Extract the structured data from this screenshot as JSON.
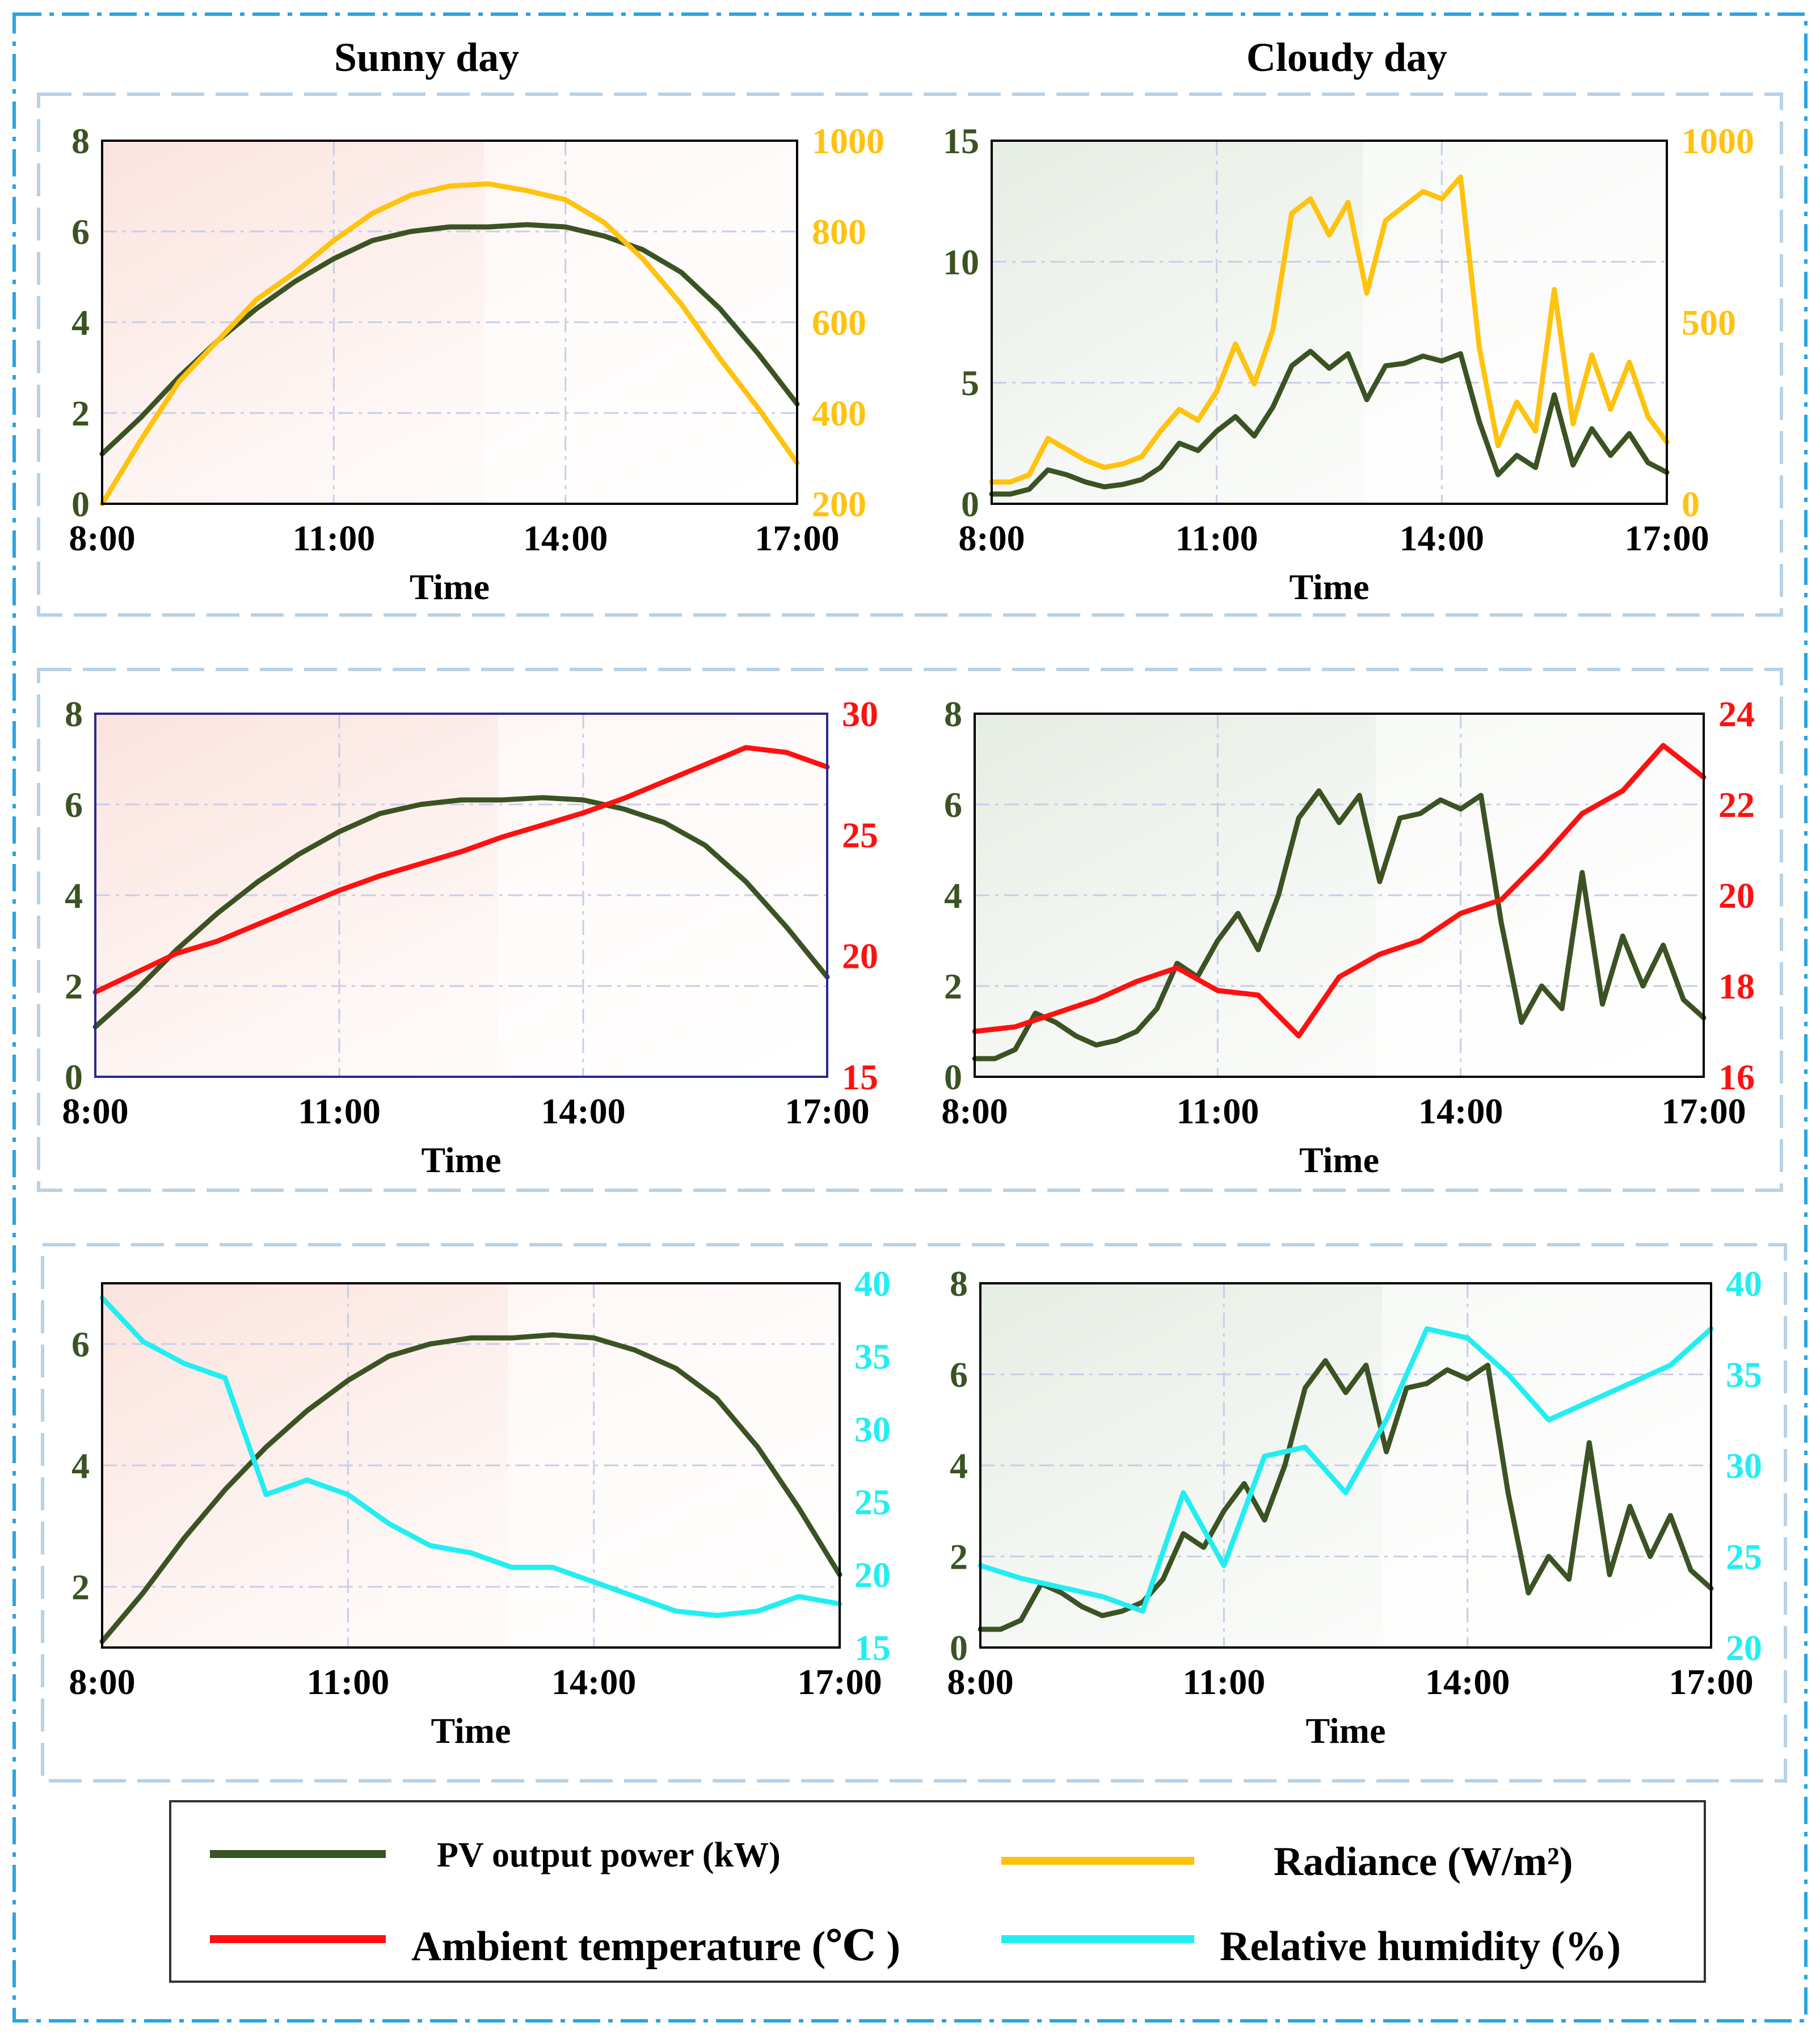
{
  "columns": {
    "left_title": "Sunny day",
    "right_title": "Cloudy day"
  },
  "colors": {
    "pv": "#3b5323",
    "radiance": "#ffc20e",
    "temperature": "#ff1010",
    "humidity": "#22eef2",
    "dark_axis_label": "#3b5323",
    "outer_border": "#29a5e0",
    "group_border": "#b8d2e6",
    "grid": "#c8cde8"
  },
  "legend": {
    "pv": "PV output power (kW)",
    "radiance": "Radiance (W/m²)",
    "temperature": "Ambient temperature (℃ )",
    "humidity": "Relative humidity (%)"
  },
  "chart_data": [
    {
      "id": "sunny-radiance",
      "type": "line",
      "title": "",
      "xlabel": "Time",
      "x_ticks": [
        "8:00",
        "11:00",
        "14:00",
        "17:00"
      ],
      "ylim_left": [
        0,
        8
      ],
      "y_ticks_left": [
        "0",
        "2",
        "4",
        "6",
        "8"
      ],
      "ylabel_left": "",
      "ylim_right": [
        200,
        1000
      ],
      "y_ticks_right": [
        "200",
        "400",
        "600",
        "800",
        "1000"
      ],
      "ylabel_right": "",
      "right_color": "#ffc20e",
      "series": [
        {
          "name": "PV output power (kW)",
          "axis": "left",
          "color": "#3b5323",
          "x": [
            0,
            0.5,
            1,
            1.5,
            2,
            2.5,
            3,
            3.5,
            4,
            4.5,
            5,
            5.5,
            6,
            6.5,
            7,
            7.5,
            8,
            8.5,
            9
          ],
          "values": [
            1.1,
            1.9,
            2.8,
            3.6,
            4.3,
            4.9,
            5.4,
            5.8,
            6.0,
            6.1,
            6.1,
            6.15,
            6.1,
            5.9,
            5.6,
            5.1,
            4.3,
            3.3,
            2.2
          ]
        },
        {
          "name": "Radiance (W/m²)",
          "axis": "right",
          "color": "#ffc20e",
          "x": [
            0,
            0.5,
            1,
            1.5,
            2,
            2.5,
            3,
            3.5,
            4,
            4.5,
            5,
            5.5,
            6,
            6.5,
            7,
            7.5,
            8,
            8.5,
            9
          ],
          "values": [
            200,
            340,
            470,
            560,
            650,
            710,
            780,
            840,
            880,
            900,
            905,
            890,
            870,
            820,
            740,
            640,
            520,
            410,
            290
          ]
        }
      ]
    },
    {
      "id": "cloudy-radiance",
      "type": "line",
      "title": "",
      "xlabel": "Time",
      "x_ticks": [
        "8:00",
        "11:00",
        "14:00",
        "17:00"
      ],
      "ylim_left": [
        0,
        15
      ],
      "y_ticks_left": [
        "0",
        "5",
        "10",
        "15"
      ],
      "ylabel_left": "",
      "ylim_right": [
        0,
        1000
      ],
      "y_ticks_right": [
        "0",
        "500",
        "1000"
      ],
      "ylabel_right": "",
      "right_color": "#ffc20e",
      "series": [
        {
          "name": "PV output power (kW)",
          "axis": "left",
          "color": "#3b5323",
          "x": [
            0,
            0.25,
            0.5,
            0.75,
            1,
            1.25,
            1.5,
            1.75,
            2,
            2.25,
            2.5,
            2.75,
            3,
            3.25,
            3.5,
            3.75,
            4,
            4.25,
            4.5,
            4.75,
            5,
            5.25,
            5.5,
            5.75,
            6,
            6.25,
            6.5,
            6.75,
            7,
            7.25,
            7.5,
            7.75,
            8,
            8.25,
            8.5,
            8.75,
            9
          ],
          "values": [
            0.4,
            0.4,
            0.6,
            1.4,
            1.2,
            0.9,
            0.7,
            0.8,
            1.0,
            1.5,
            2.5,
            2.2,
            3.0,
            3.6,
            2.8,
            4.0,
            5.7,
            6.3,
            5.6,
            6.2,
            4.3,
            5.7,
            5.8,
            6.1,
            5.9,
            6.2,
            3.4,
            1.2,
            2.0,
            1.5,
            4.5,
            1.6,
            3.1,
            2.0,
            2.9,
            1.7,
            1.3
          ]
        },
        {
          "name": "Radiance (W/m²)",
          "axis": "right",
          "color": "#ffc20e",
          "x": [
            0,
            0.25,
            0.5,
            0.75,
            1,
            1.25,
            1.5,
            1.75,
            2,
            2.25,
            2.5,
            2.75,
            3,
            3.25,
            3.5,
            3.75,
            4,
            4.25,
            4.5,
            4.75,
            5,
            5.25,
            5.5,
            5.75,
            6,
            6.25,
            6.5,
            6.75,
            7,
            7.25,
            7.5,
            7.75,
            8,
            8.25,
            8.5,
            8.75,
            9
          ],
          "values": [
            60,
            60,
            80,
            180,
            150,
            120,
            100,
            110,
            130,
            200,
            260,
            230,
            310,
            440,
            330,
            480,
            800,
            840,
            740,
            830,
            580,
            780,
            820,
            860,
            840,
            900,
            430,
            160,
            280,
            200,
            590,
            220,
            410,
            260,
            390,
            240,
            170
          ]
        }
      ]
    },
    {
      "id": "sunny-temperature",
      "type": "line",
      "title": "",
      "xlabel": "Time",
      "x_ticks": [
        "8:00",
        "11:00",
        "14:00",
        "17:00"
      ],
      "ylim_left": [
        0,
        8
      ],
      "y_ticks_left": [
        "0",
        "2",
        "4",
        "6",
        "8"
      ],
      "ylabel_left": "",
      "ylim_right": [
        15,
        30
      ],
      "y_ticks_right": [
        "15",
        "20",
        "25",
        "30"
      ],
      "ylabel_right": "",
      "right_color": "#ff1010",
      "series": [
        {
          "name": "PV output power (kW)",
          "axis": "left",
          "color": "#3b5323",
          "x": [
            0,
            0.5,
            1,
            1.5,
            2,
            2.5,
            3,
            3.5,
            4,
            4.5,
            5,
            5.5,
            6,
            6.5,
            7,
            7.5,
            8,
            8.5,
            9
          ],
          "values": [
            1.1,
            1.9,
            2.8,
            3.6,
            4.3,
            4.9,
            5.4,
            5.8,
            6.0,
            6.1,
            6.1,
            6.15,
            6.1,
            5.9,
            5.6,
            5.1,
            4.3,
            3.3,
            2.2
          ]
        },
        {
          "name": "Ambient temperature (℃)",
          "axis": "right",
          "color": "#ff1010",
          "x": [
            0,
            0.5,
            1,
            1.5,
            2,
            2.5,
            3,
            3.5,
            4,
            4.5,
            5,
            5.5,
            6,
            6.5,
            7,
            7.5,
            8,
            8.5,
            9
          ],
          "values": [
            18.5,
            19.3,
            20.1,
            20.6,
            21.3,
            22.0,
            22.7,
            23.3,
            23.8,
            24.3,
            24.9,
            25.4,
            25.9,
            26.5,
            27.2,
            27.9,
            28.6,
            28.4,
            27.8
          ]
        }
      ]
    },
    {
      "id": "cloudy-temperature",
      "type": "line",
      "title": "",
      "xlabel": "Time",
      "x_ticks": [
        "8:00",
        "11:00",
        "14:00",
        "17:00"
      ],
      "ylim_left": [
        0,
        8
      ],
      "y_ticks_left": [
        "0",
        "2",
        "4",
        "6",
        "8"
      ],
      "ylabel_left": "",
      "ylim_right": [
        16,
        24
      ],
      "y_ticks_right": [
        "16",
        "18",
        "20",
        "22",
        "24"
      ],
      "ylabel_right": "",
      "right_color": "#ff1010",
      "series": [
        {
          "name": "PV output power (kW)",
          "axis": "left",
          "color": "#3b5323",
          "x": [
            0,
            0.25,
            0.5,
            0.75,
            1,
            1.25,
            1.5,
            1.75,
            2,
            2.25,
            2.5,
            2.75,
            3,
            3.25,
            3.5,
            3.75,
            4,
            4.25,
            4.5,
            4.75,
            5,
            5.25,
            5.5,
            5.75,
            6,
            6.25,
            6.5,
            6.75,
            7,
            7.25,
            7.5,
            7.75,
            8,
            8.25,
            8.5,
            8.75,
            9
          ],
          "values": [
            0.4,
            0.4,
            0.6,
            1.4,
            1.2,
            0.9,
            0.7,
            0.8,
            1.0,
            1.5,
            2.5,
            2.2,
            3.0,
            3.6,
            2.8,
            4.0,
            5.7,
            6.3,
            5.6,
            6.2,
            4.3,
            5.7,
            5.8,
            6.1,
            5.9,
            6.2,
            3.4,
            1.2,
            2.0,
            1.5,
            4.5,
            1.6,
            3.1,
            2.0,
            2.9,
            1.7,
            1.3
          ]
        },
        {
          "name": "Ambient temperature (℃)",
          "axis": "right",
          "color": "#ff1010",
          "x": [
            0,
            0.5,
            1,
            1.5,
            2,
            2.5,
            3,
            3.5,
            4,
            4.5,
            5,
            5.5,
            6,
            6.5,
            7,
            7.5,
            8,
            8.5,
            9
          ],
          "values": [
            17.0,
            17.1,
            17.4,
            17.7,
            18.1,
            18.4,
            17.9,
            17.8,
            16.9,
            18.2,
            18.7,
            19.0,
            19.6,
            19.9,
            20.8,
            21.8,
            22.3,
            23.3,
            22.6
          ]
        }
      ]
    },
    {
      "id": "sunny-humidity",
      "type": "line",
      "title": "",
      "xlabel": "Time",
      "x_ticks": [
        "8:00",
        "11:00",
        "14:00",
        "17:00"
      ],
      "ylim_left": [
        1,
        7
      ],
      "y_ticks_left": [
        "2",
        "4",
        "6"
      ],
      "ylabel_left": "",
      "ylim_right": [
        15,
        40
      ],
      "y_ticks_right": [
        "15",
        "20",
        "25",
        "30",
        "35",
        "40"
      ],
      "ylabel_right": "",
      "right_color": "#22eef2",
      "series": [
        {
          "name": "PV output power (kW)",
          "axis": "left",
          "color": "#3b5323",
          "x": [
            0,
            0.5,
            1,
            1.5,
            2,
            2.5,
            3,
            3.5,
            4,
            4.5,
            5,
            5.5,
            6,
            6.5,
            7,
            7.5,
            8,
            8.5,
            9
          ],
          "values": [
            1.1,
            1.9,
            2.8,
            3.6,
            4.3,
            4.9,
            5.4,
            5.8,
            6.0,
            6.1,
            6.1,
            6.15,
            6.1,
            5.9,
            5.6,
            5.1,
            4.3,
            3.3,
            2.2
          ]
        },
        {
          "name": "Relative humidity (%)",
          "axis": "right",
          "color": "#22eef2",
          "x": [
            0,
            0.5,
            1,
            1.5,
            2,
            2.5,
            3,
            3.5,
            4,
            4.5,
            5,
            5.5,
            6,
            6.5,
            7,
            7.5,
            8,
            8.5,
            9
          ],
          "values": [
            39,
            36,
            34.5,
            33.5,
            25.5,
            26.5,
            25.5,
            23.5,
            22,
            21.5,
            20.5,
            20.5,
            19.5,
            18.5,
            17.5,
            17.2,
            17.5,
            18.5,
            18
          ]
        }
      ]
    },
    {
      "id": "cloudy-humidity",
      "type": "line",
      "title": "",
      "xlabel": "Time",
      "x_ticks": [
        "8:00",
        "11:00",
        "14:00",
        "17:00"
      ],
      "ylim_left": [
        0,
        8
      ],
      "y_ticks_left": [
        "0",
        "2",
        "4",
        "6",
        "8"
      ],
      "ylabel_left": "",
      "ylim_right": [
        20,
        40
      ],
      "y_ticks_right": [
        "20",
        "25",
        "30",
        "35",
        "40"
      ],
      "ylabel_right": "",
      "right_color": "#22eef2",
      "series": [
        {
          "name": "PV output power (kW)",
          "axis": "left",
          "color": "#3b5323",
          "x": [
            0,
            0.25,
            0.5,
            0.75,
            1,
            1.25,
            1.5,
            1.75,
            2,
            2.25,
            2.5,
            2.75,
            3,
            3.25,
            3.5,
            3.75,
            4,
            4.25,
            4.5,
            4.75,
            5,
            5.25,
            5.5,
            5.75,
            6,
            6.25,
            6.5,
            6.75,
            7,
            7.25,
            7.5,
            7.75,
            8,
            8.25,
            8.5,
            8.75,
            9
          ],
          "values": [
            0.4,
            0.4,
            0.6,
            1.4,
            1.2,
            0.9,
            0.7,
            0.8,
            1.0,
            1.5,
            2.5,
            2.2,
            3.0,
            3.6,
            2.8,
            4.0,
            5.7,
            6.3,
            5.6,
            6.2,
            4.3,
            5.7,
            5.8,
            6.1,
            5.9,
            6.2,
            3.4,
            1.2,
            2.0,
            1.5,
            4.5,
            1.6,
            3.1,
            2.0,
            2.9,
            1.7,
            1.3
          ]
        },
        {
          "name": "Relative humidity (%)",
          "axis": "right",
          "color": "#22eef2",
          "x": [
            0,
            0.5,
            1,
            1.5,
            2,
            2.5,
            3,
            3.5,
            4,
            4.5,
            5,
            5.5,
            6,
            6.5,
            7,
            7.5,
            8,
            8.5,
            9
          ],
          "values": [
            24.5,
            23.8,
            23.3,
            22.8,
            22.0,
            28.5,
            24.5,
            30.5,
            31.0,
            28.5,
            32.5,
            37.5,
            37.0,
            35.0,
            32.5,
            33.5,
            34.5,
            35.5,
            37.5
          ]
        }
      ]
    }
  ]
}
